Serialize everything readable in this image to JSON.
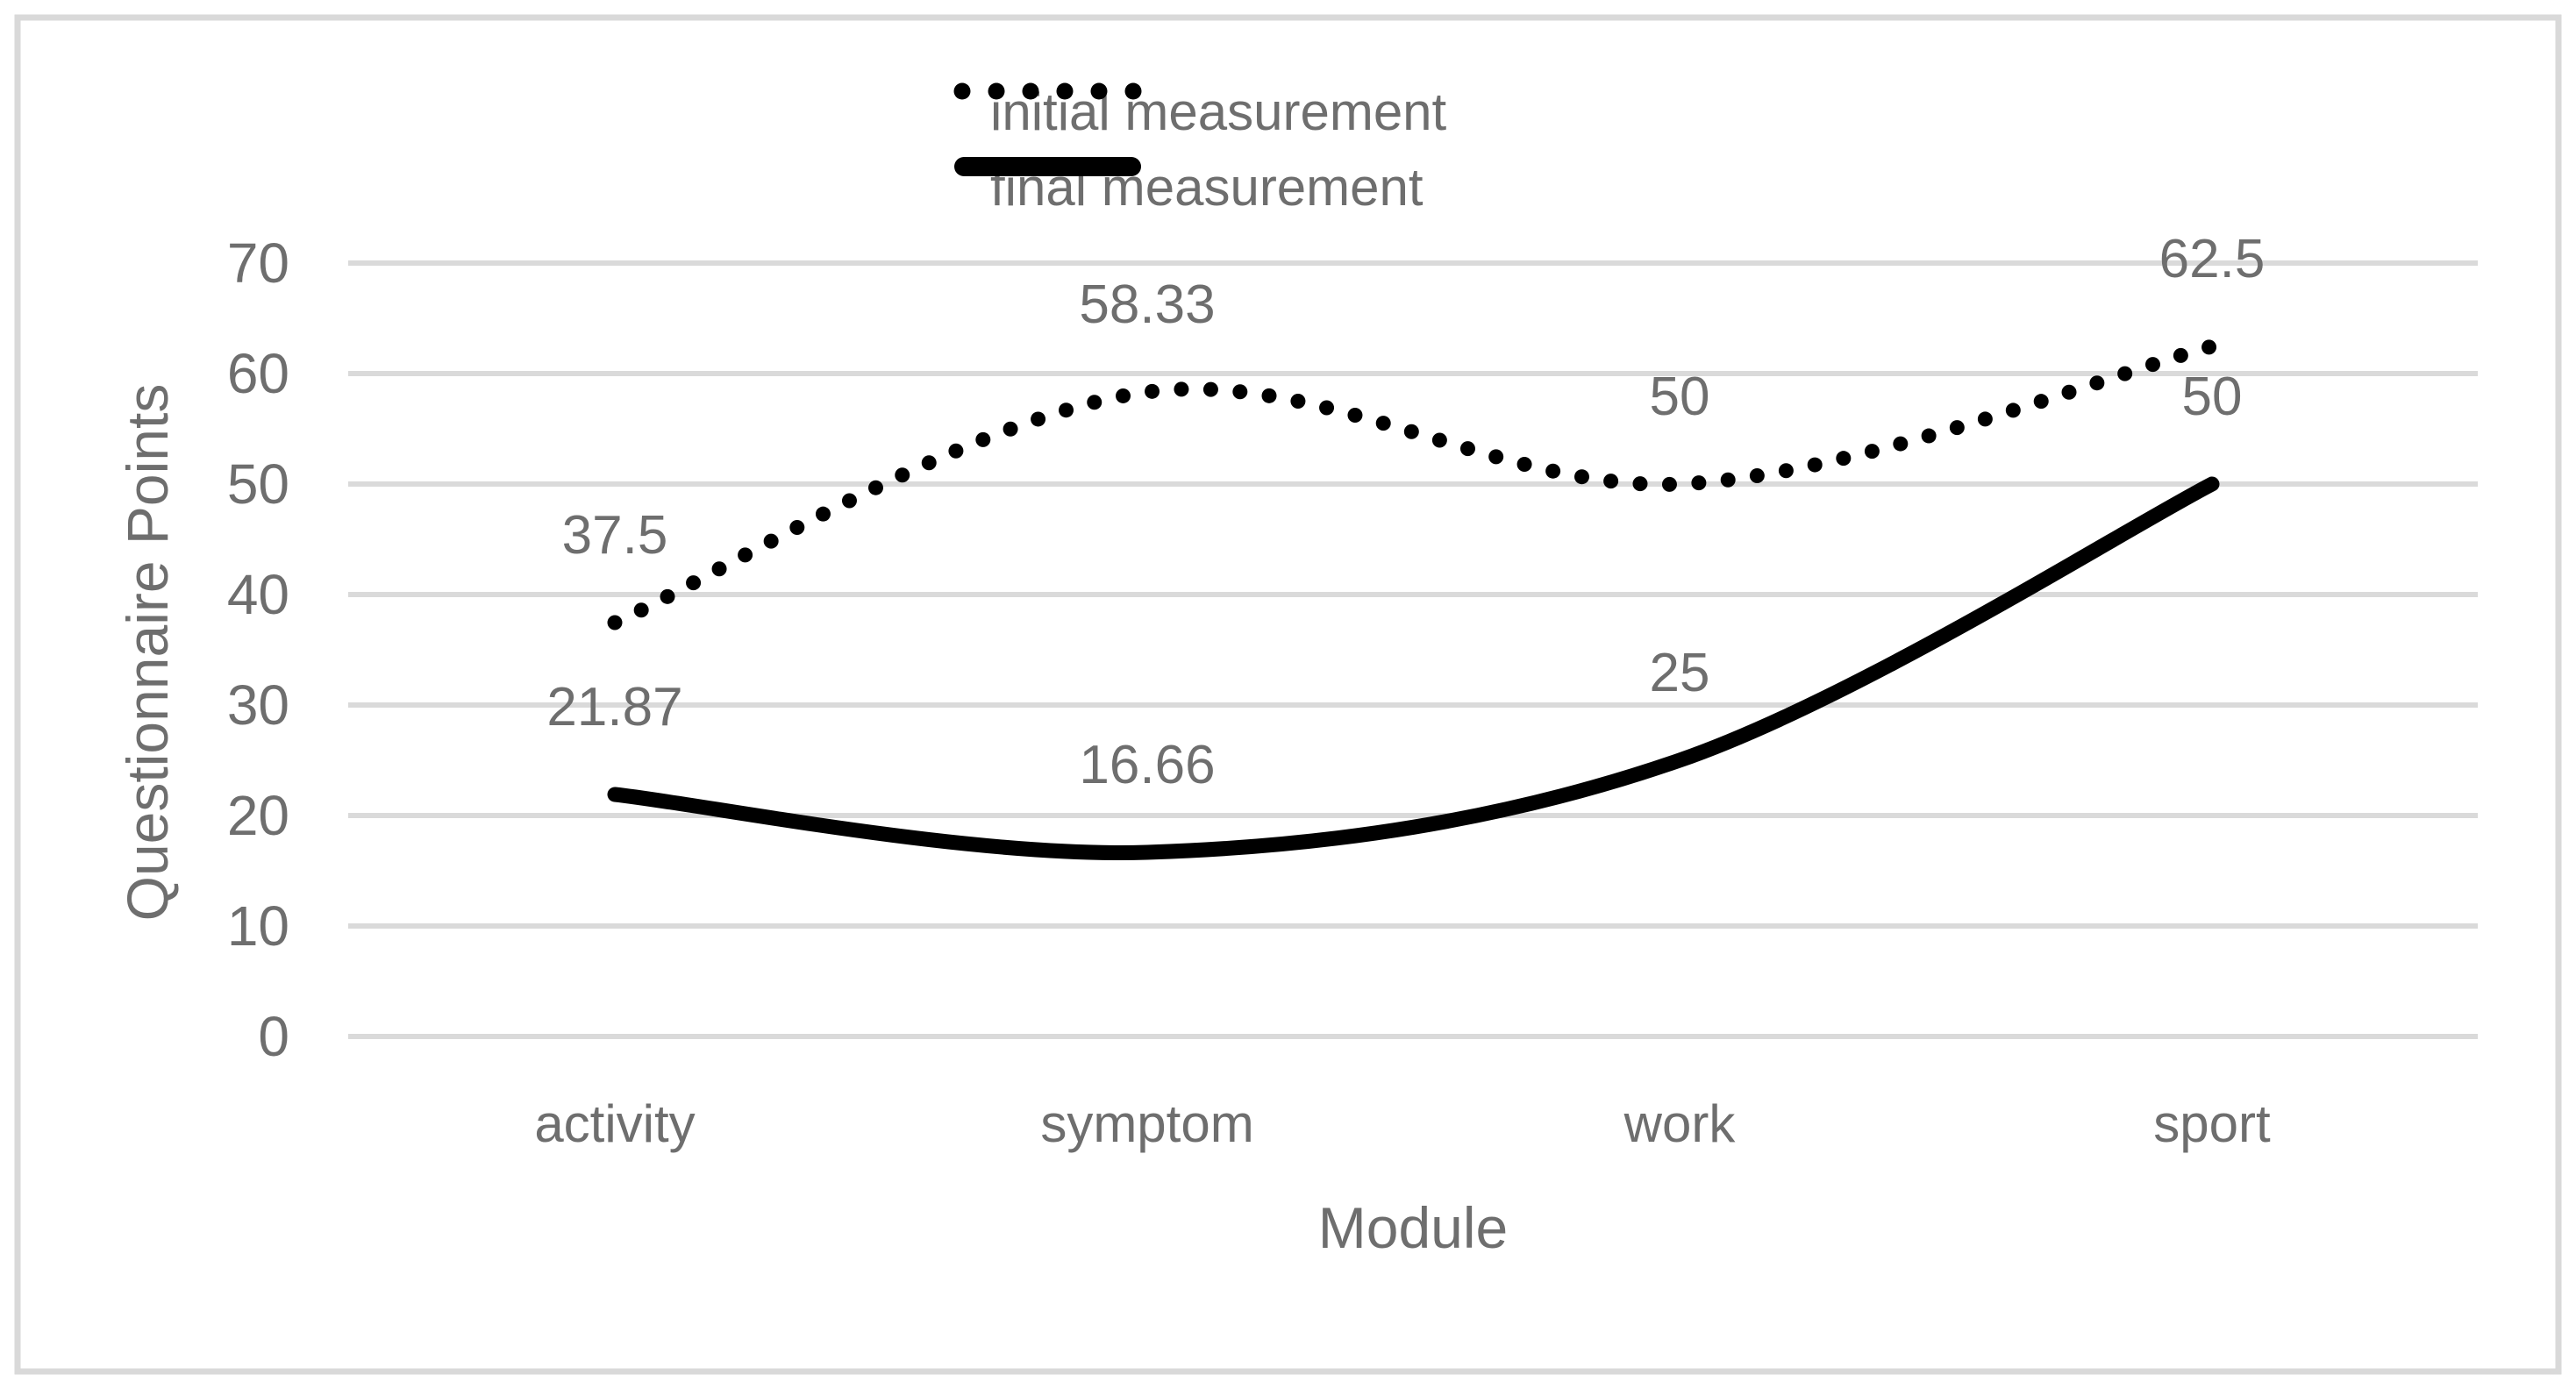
{
  "chart_data": {
    "type": "line",
    "title": "",
    "xlabel": "Module",
    "ylabel": "Questionnaire Points",
    "categories": [
      "activity",
      "symptom",
      "work",
      "sport"
    ],
    "series": [
      {
        "name": "initial measurement",
        "style": "dotted",
        "values": [
          37.5,
          58.33,
          50,
          62.5
        ],
        "labels": [
          "37.5",
          "58.33",
          "50",
          "62.5"
        ]
      },
      {
        "name": "final measurement",
        "style": "solid",
        "values": [
          21.87,
          16.66,
          25,
          50
        ],
        "labels": [
          "21.87",
          "16.66",
          "25",
          "50"
        ]
      }
    ],
    "ylim": [
      0,
      70
    ],
    "ytick_step": 10,
    "yticks": [
      "0",
      "10",
      "20",
      "30",
      "40",
      "50",
      "60",
      "70"
    ],
    "grid": true,
    "smoothed": true,
    "legend_position": "top-center",
    "line_color": "#000000",
    "text_color": "#6e6e6e",
    "gridline_color": "#dadada",
    "frame_color": "#d9d9d9",
    "background_color": "#ffffff"
  }
}
